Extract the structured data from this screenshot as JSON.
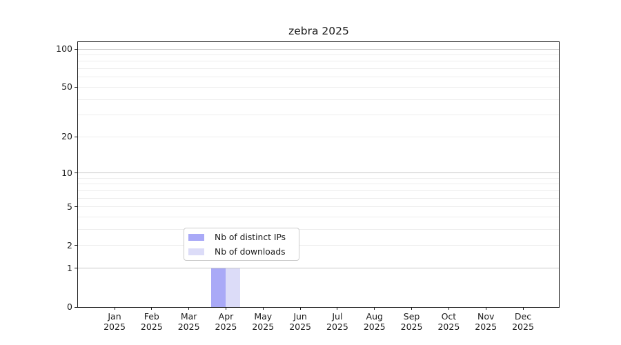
{
  "title": "zebra 2025",
  "colors": {
    "distinct_ips": "#a9a9f7",
    "downloads": "#dcdcf8",
    "grid_major": "#c6c6c6",
    "grid_minor": "#ededed",
    "spine": "#1a1a1a",
    "text": "#1a1a1a",
    "legend_border": "#cccccc"
  },
  "y_axis": {
    "tick_labels": [
      "100",
      "50",
      "20",
      "10",
      "5",
      "2",
      "1",
      "0"
    ],
    "tick_values": [
      100,
      50,
      20,
      10,
      5,
      2,
      1,
      0
    ],
    "major_grid_values": [
      1,
      10,
      100
    ],
    "minor_grid_values": [
      2,
      3,
      4,
      5,
      6,
      7,
      8,
      9,
      20,
      30,
      40,
      50,
      60,
      70,
      80,
      90
    ]
  },
  "x_axis": {
    "months": [
      "Jan",
      "Feb",
      "Mar",
      "Apr",
      "May",
      "Jun",
      "Jul",
      "Aug",
      "Sep",
      "Oct",
      "Nov",
      "Dec"
    ],
    "year": "2025"
  },
  "legend": {
    "items": [
      {
        "label": "Nb of distinct IPs",
        "color_key": "distinct_ips"
      },
      {
        "label": "Nb of downloads",
        "color_key": "downloads"
      }
    ]
  },
  "chart_data": {
    "type": "bar",
    "title": "zebra 2025",
    "categories": [
      "Jan 2025",
      "Feb 2025",
      "Mar 2025",
      "Apr 2025",
      "May 2025",
      "Jun 2025",
      "Jul 2025",
      "Aug 2025",
      "Sep 2025",
      "Oct 2025",
      "Nov 2025",
      "Dec 2025"
    ],
    "series": [
      {
        "name": "Nb of distinct IPs",
        "color": "#a9a9f7",
        "values": [
          0,
          0,
          0,
          1,
          0,
          0,
          0,
          0,
          0,
          0,
          0,
          0
        ]
      },
      {
        "name": "Nb of downloads",
        "color": "#dcdcf8",
        "values": [
          0,
          0,
          0,
          1,
          0,
          0,
          0,
          0,
          0,
          0,
          0,
          0
        ]
      }
    ],
    "xlabel": "",
    "ylabel": "",
    "y_scale": "log1p (symlog-like: 0 shown, log spacing above)",
    "y_ticks": [
      0,
      1,
      2,
      5,
      10,
      20,
      50,
      100
    ],
    "ylim": [
      0,
      113
    ],
    "grid": "horizontal, major at 1/10/100, minor at 2-9 and 20-90",
    "legend_position": "lower center, inside axes"
  }
}
